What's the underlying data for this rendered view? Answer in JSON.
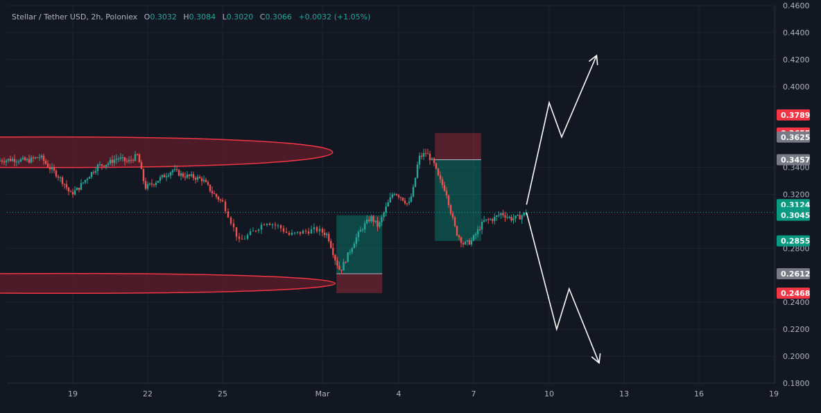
{
  "header": {
    "symbol": "Stellar / Tether USD, 2h, Poloniex",
    "o_label": "O",
    "o_value": "0.3032",
    "h_label": "H",
    "h_value": "0.3084",
    "l_label": "L",
    "l_value": "0.3020",
    "c_label": "C",
    "c_value": "0.3066",
    "change": "+0.0032 (+1.05%)"
  },
  "colors": {
    "background": "#131722",
    "up": "#26a69a",
    "down": "#ef5350",
    "grid": "#1f2330",
    "text": "#b2b5be",
    "zone_stroke": "#f23645",
    "zone_fill": "#5c1d2a",
    "arrow": "#ffffff"
  },
  "chart_data": {
    "type": "candlestick",
    "title": "Stellar / Tether USD, 2h, Poloniex",
    "xlabel": "",
    "ylabel": "",
    "ylim": [
      0.18,
      0.46
    ],
    "grid": true,
    "x_ticks": [
      "19",
      "22",
      "25",
      "Mar",
      "4",
      "7",
      "10",
      "13",
      "16",
      "19"
    ],
    "y_ticks": [
      "0.4600",
      "0.4400",
      "0.4200",
      "0.4000",
      "0.3400",
      "0.3200",
      "0.2800",
      "0.2400",
      "0.2200",
      "0.2000",
      "0.1800"
    ],
    "price_tags": [
      {
        "value": 0.3789,
        "text": "0.3789",
        "color": "#f23645"
      },
      {
        "value": 0.3655,
        "text": "0.3655",
        "color": "#f23645"
      },
      {
        "value": 0.3625,
        "text": "0.3625",
        "color": "#787b86"
      },
      {
        "value": 0.3457,
        "text": "0.3457",
        "color": "#787b86"
      },
      {
        "value": 0.3124,
        "text": "0.3124",
        "color": "#089981"
      },
      {
        "value": 0.3066,
        "text": "0.3066",
        "color": "#089981"
      },
      {
        "value": 0.3045,
        "text": "0.3045",
        "color": "#089981"
      },
      {
        "value": 0.2855,
        "text": "0.2855",
        "color": "#089981"
      },
      {
        "value": 0.2612,
        "text": "0.2612",
        "color": "#787b86"
      },
      {
        "value": 0.2468,
        "text": "0.2468",
        "color": "#f23645"
      }
    ],
    "last_price": 0.3066,
    "price_path": [
      [
        16.0,
        0.345
      ],
      [
        16.6,
        0.346
      ],
      [
        17.2,
        0.345
      ],
      [
        17.7,
        0.348
      ],
      [
        18.0,
        0.341
      ],
      [
        18.4,
        0.334
      ],
      [
        18.7,
        0.327
      ],
      [
        18.9,
        0.32
      ],
      [
        19.2,
        0.324
      ],
      [
        19.6,
        0.333
      ],
      [
        20.0,
        0.341
      ],
      [
        20.4,
        0.343
      ],
      [
        20.8,
        0.347
      ],
      [
        21.2,
        0.344
      ],
      [
        21.6,
        0.349
      ],
      [
        21.9,
        0.325
      ],
      [
        22.2,
        0.328
      ],
      [
        22.6,
        0.333
      ],
      [
        23.0,
        0.338
      ],
      [
        23.4,
        0.334
      ],
      [
        23.8,
        0.333
      ],
      [
        24.2,
        0.331
      ],
      [
        24.6,
        0.321
      ],
      [
        25.0,
        0.314
      ],
      [
        25.2,
        0.303
      ],
      [
        25.5,
        0.285
      ],
      [
        25.9,
        0.292
      ],
      [
        26.3,
        0.3
      ],
      [
        26.7,
        0.296
      ],
      [
        27.0,
        0.29
      ],
      [
        27.4,
        0.292
      ],
      [
        27.8,
        0.294
      ],
      [
        28.2,
        0.29
      ],
      [
        28.5,
        0.272
      ],
      [
        28.7,
        0.263
      ],
      [
        29.0,
        0.275
      ],
      [
        29.3,
        0.287
      ],
      [
        29.6,
        0.296
      ],
      [
        29.9,
        0.303
      ],
      [
        30.2,
        0.296
      ],
      [
        30.5,
        0.31
      ],
      [
        30.8,
        0.322
      ],
      [
        31.1,
        0.318
      ],
      [
        31.4,
        0.312
      ],
      [
        31.6,
        0.325
      ],
      [
        31.8,
        0.347
      ],
      [
        32.1,
        0.351
      ],
      [
        32.4,
        0.343
      ],
      [
        32.6,
        0.332
      ],
      [
        32.9,
        0.322
      ],
      [
        33.1,
        0.306
      ],
      [
        33.3,
        0.292
      ],
      [
        33.6,
        0.283
      ],
      [
        33.9,
        0.285
      ],
      [
        34.1,
        0.291
      ],
      [
        34.4,
        0.3
      ],
      [
        34.8,
        0.302
      ],
      [
        35.1,
        0.306
      ],
      [
        35.5,
        0.302
      ],
      [
        35.8,
        0.303
      ],
      [
        36.1,
        0.3066
      ]
    ],
    "zones": [
      {
        "type": "resistance",
        "x_start": 16.0,
        "x_tip": 28.4,
        "y_top": 0.3625,
        "y_bottom": 0.34
      },
      {
        "type": "support",
        "x_start": 16.0,
        "x_tip": 28.5,
        "y_top": 0.2612,
        "y_bottom": 0.2468
      }
    ],
    "positions": [
      {
        "type": "long",
        "x_start": 28.55,
        "x_end": 30.35,
        "entry": 0.2612,
        "target": 0.3045,
        "stop": 0.2468
      },
      {
        "type": "short",
        "x_start": 32.45,
        "x_end": 34.3,
        "entry": 0.3457,
        "target": 0.2855,
        "stop": 0.3655
      }
    ],
    "projections": [
      {
        "type": "bullish",
        "points": [
          [
            36.1,
            0.3124
          ],
          [
            37.0,
            0.388
          ],
          [
            37.5,
            0.3625
          ],
          [
            38.9,
            0.423
          ]
        ]
      },
      {
        "type": "bearish",
        "points": [
          [
            36.1,
            0.3066
          ],
          [
            37.3,
            0.22
          ],
          [
            37.8,
            0.25
          ],
          [
            39.0,
            0.195
          ]
        ]
      }
    ]
  }
}
